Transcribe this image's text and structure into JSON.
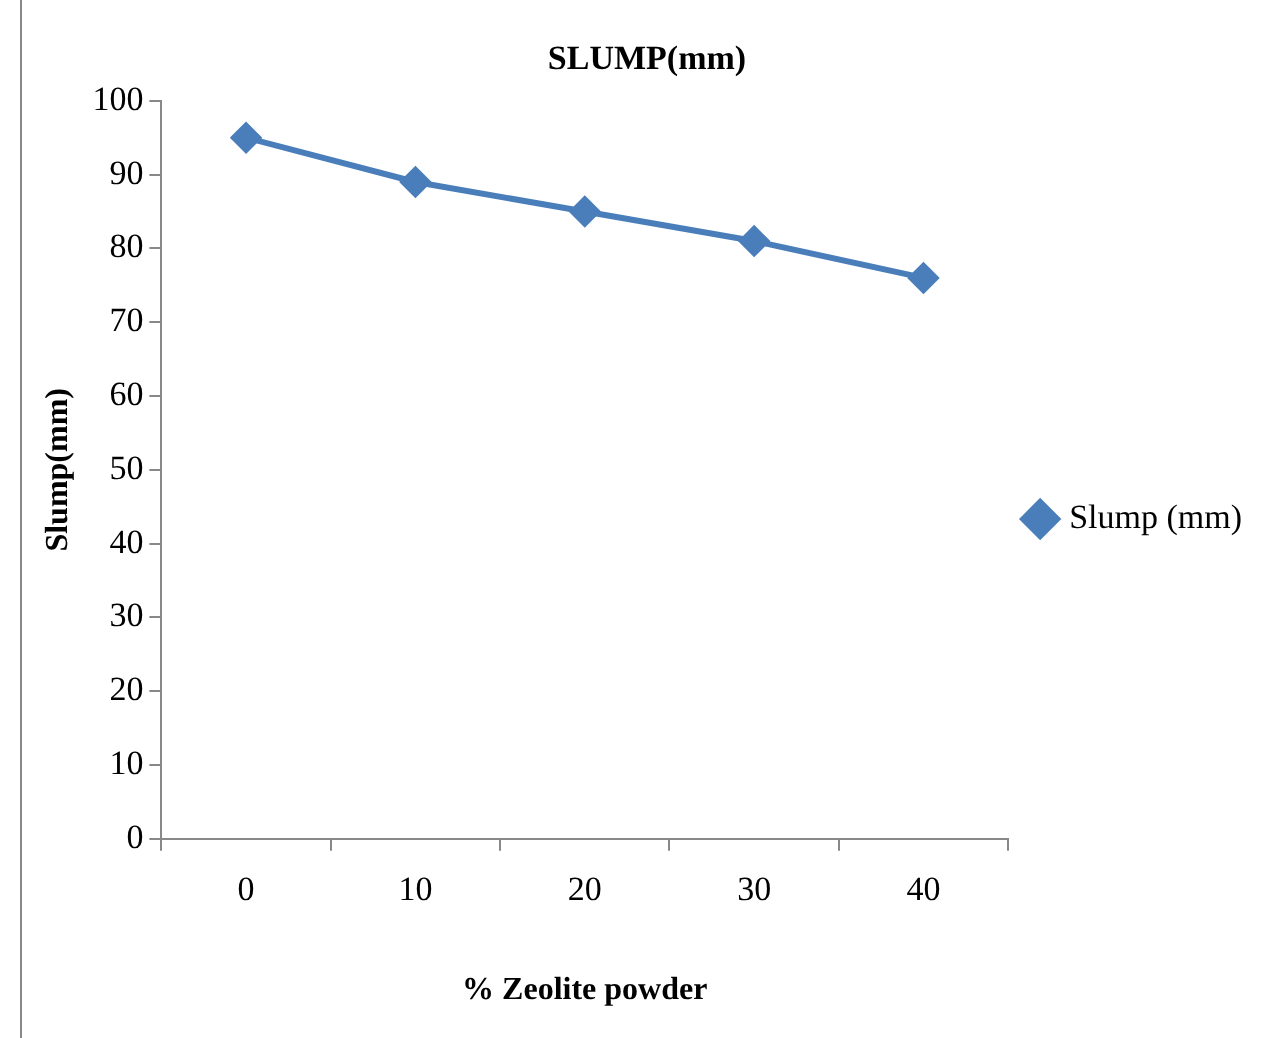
{
  "chart_data": {
    "type": "line",
    "title": "SLUMP(mm)",
    "xlabel": "% Zeolite powder",
    "ylabel": "Slump(mm)",
    "categories": [
      "0",
      "10",
      "20",
      "30",
      "40"
    ],
    "series": [
      {
        "name": "Slump (mm)",
        "color": "#4a7ebb",
        "values": [
          95,
          89,
          85,
          81,
          76
        ]
      }
    ],
    "ylim": [
      0,
      100
    ],
    "yticks": [
      0,
      10,
      20,
      30,
      40,
      50,
      60,
      70,
      80,
      90,
      100
    ],
    "grid": false,
    "legend": "right",
    "marker": "diamond",
    "line_style": "solid"
  }
}
